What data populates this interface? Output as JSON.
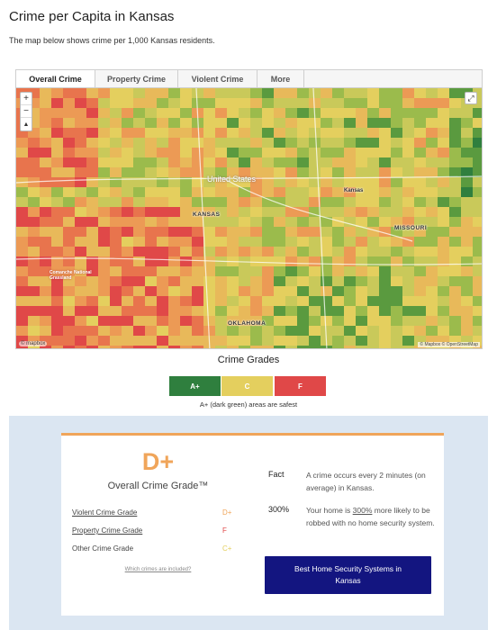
{
  "page": {
    "title": "Crime per Capita in Kansas",
    "subtitle": "The map below shows crime per 1,000 Kansas residents."
  },
  "tabs": [
    {
      "label": "Overall Crime",
      "active": true
    },
    {
      "label": "Property Crime",
      "active": false
    },
    {
      "label": "Violent Crime",
      "active": false
    },
    {
      "label": "More",
      "active": false
    }
  ],
  "map": {
    "labels": {
      "united_states": "United States",
      "kansas": "KANSAS",
      "missouri": "MISSOURI",
      "oklahoma": "OKLAHOMA",
      "kansas_city": "Kansas",
      "comanche": "Comanche National Grassland"
    },
    "zoom_in": "+",
    "zoom_out": "−",
    "reset": "▲",
    "fullscreen_icon": "expand-icon",
    "logo": "© mapbox",
    "attribution": "© Mapbox © OpenStreetMap"
  },
  "legend": {
    "title": "Crime Grades",
    "grades": [
      {
        "label": "A+",
        "color": "#2f7f3e"
      },
      {
        "label": "C",
        "color": "#e4cf5e"
      },
      {
        "label": "F",
        "color": "#e04848"
      }
    ],
    "note": "A+ (dark green) areas are safest"
  },
  "card": {
    "overall_grade": "D+",
    "overall_label": "Overall Crime Grade™",
    "rows": [
      {
        "label": "Violent Crime Grade",
        "grade": "D+"
      },
      {
        "label": "Property Crime Grade",
        "grade": "F"
      },
      {
        "label": "Other Crime Grade",
        "grade": "C+"
      }
    ],
    "which_link": "Which crimes are included?",
    "facts": [
      {
        "key": "Fact",
        "text": "A crime occurs every 2 minutes (on average) in Kansas."
      },
      {
        "key": "300%",
        "text_before": "Your home is ",
        "text_highlight": "300%",
        "text_after": " more likely to be robbed with no home security system."
      }
    ],
    "cta": "Best Home Security Systems in Kansas"
  },
  "colors": {
    "accent": "#f0a55a",
    "cta_bg": "#131580",
    "panel_bg": "#dbe6f2"
  }
}
